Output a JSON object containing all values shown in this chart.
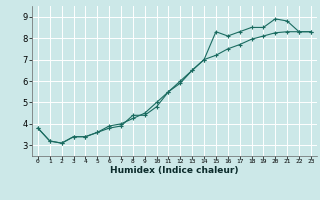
{
  "xlabel": "Humidex (Indice chaleur)",
  "xlim": [
    -0.5,
    23.5
  ],
  "ylim": [
    2.5,
    9.5
  ],
  "yticks": [
    3,
    4,
    5,
    6,
    7,
    8,
    9
  ],
  "xticks": [
    0,
    1,
    2,
    3,
    4,
    5,
    6,
    7,
    8,
    9,
    10,
    11,
    12,
    13,
    14,
    15,
    16,
    17,
    18,
    19,
    20,
    21,
    22,
    23
  ],
  "bg_color": "#cce8e8",
  "grid_color": "#ffffff",
  "line_color": "#1a6b60",
  "line1_x": [
    0,
    1,
    2,
    3,
    4,
    5,
    6,
    7,
    8,
    9,
    10,
    11,
    12,
    13,
    14,
    15,
    16,
    17,
    18,
    19,
    20,
    21,
    22,
    23
  ],
  "line1_y": [
    3.8,
    3.2,
    3.1,
    3.4,
    3.4,
    3.6,
    3.8,
    3.9,
    4.4,
    4.4,
    4.8,
    5.5,
    5.9,
    6.5,
    7.0,
    8.3,
    8.1,
    8.3,
    8.5,
    8.5,
    8.9,
    8.8,
    8.3,
    8.3
  ],
  "line2_x": [
    0,
    1,
    2,
    3,
    4,
    5,
    6,
    7,
    8,
    9,
    10,
    11,
    12,
    13,
    14,
    15,
    16,
    17,
    18,
    19,
    20,
    21,
    22,
    23
  ],
  "line2_y": [
    3.8,
    3.2,
    3.1,
    3.4,
    3.4,
    3.6,
    3.9,
    4.0,
    4.25,
    4.5,
    5.0,
    5.5,
    6.0,
    6.5,
    7.0,
    7.2,
    7.5,
    7.7,
    7.95,
    8.1,
    8.25,
    8.3,
    8.3,
    8.3
  ]
}
